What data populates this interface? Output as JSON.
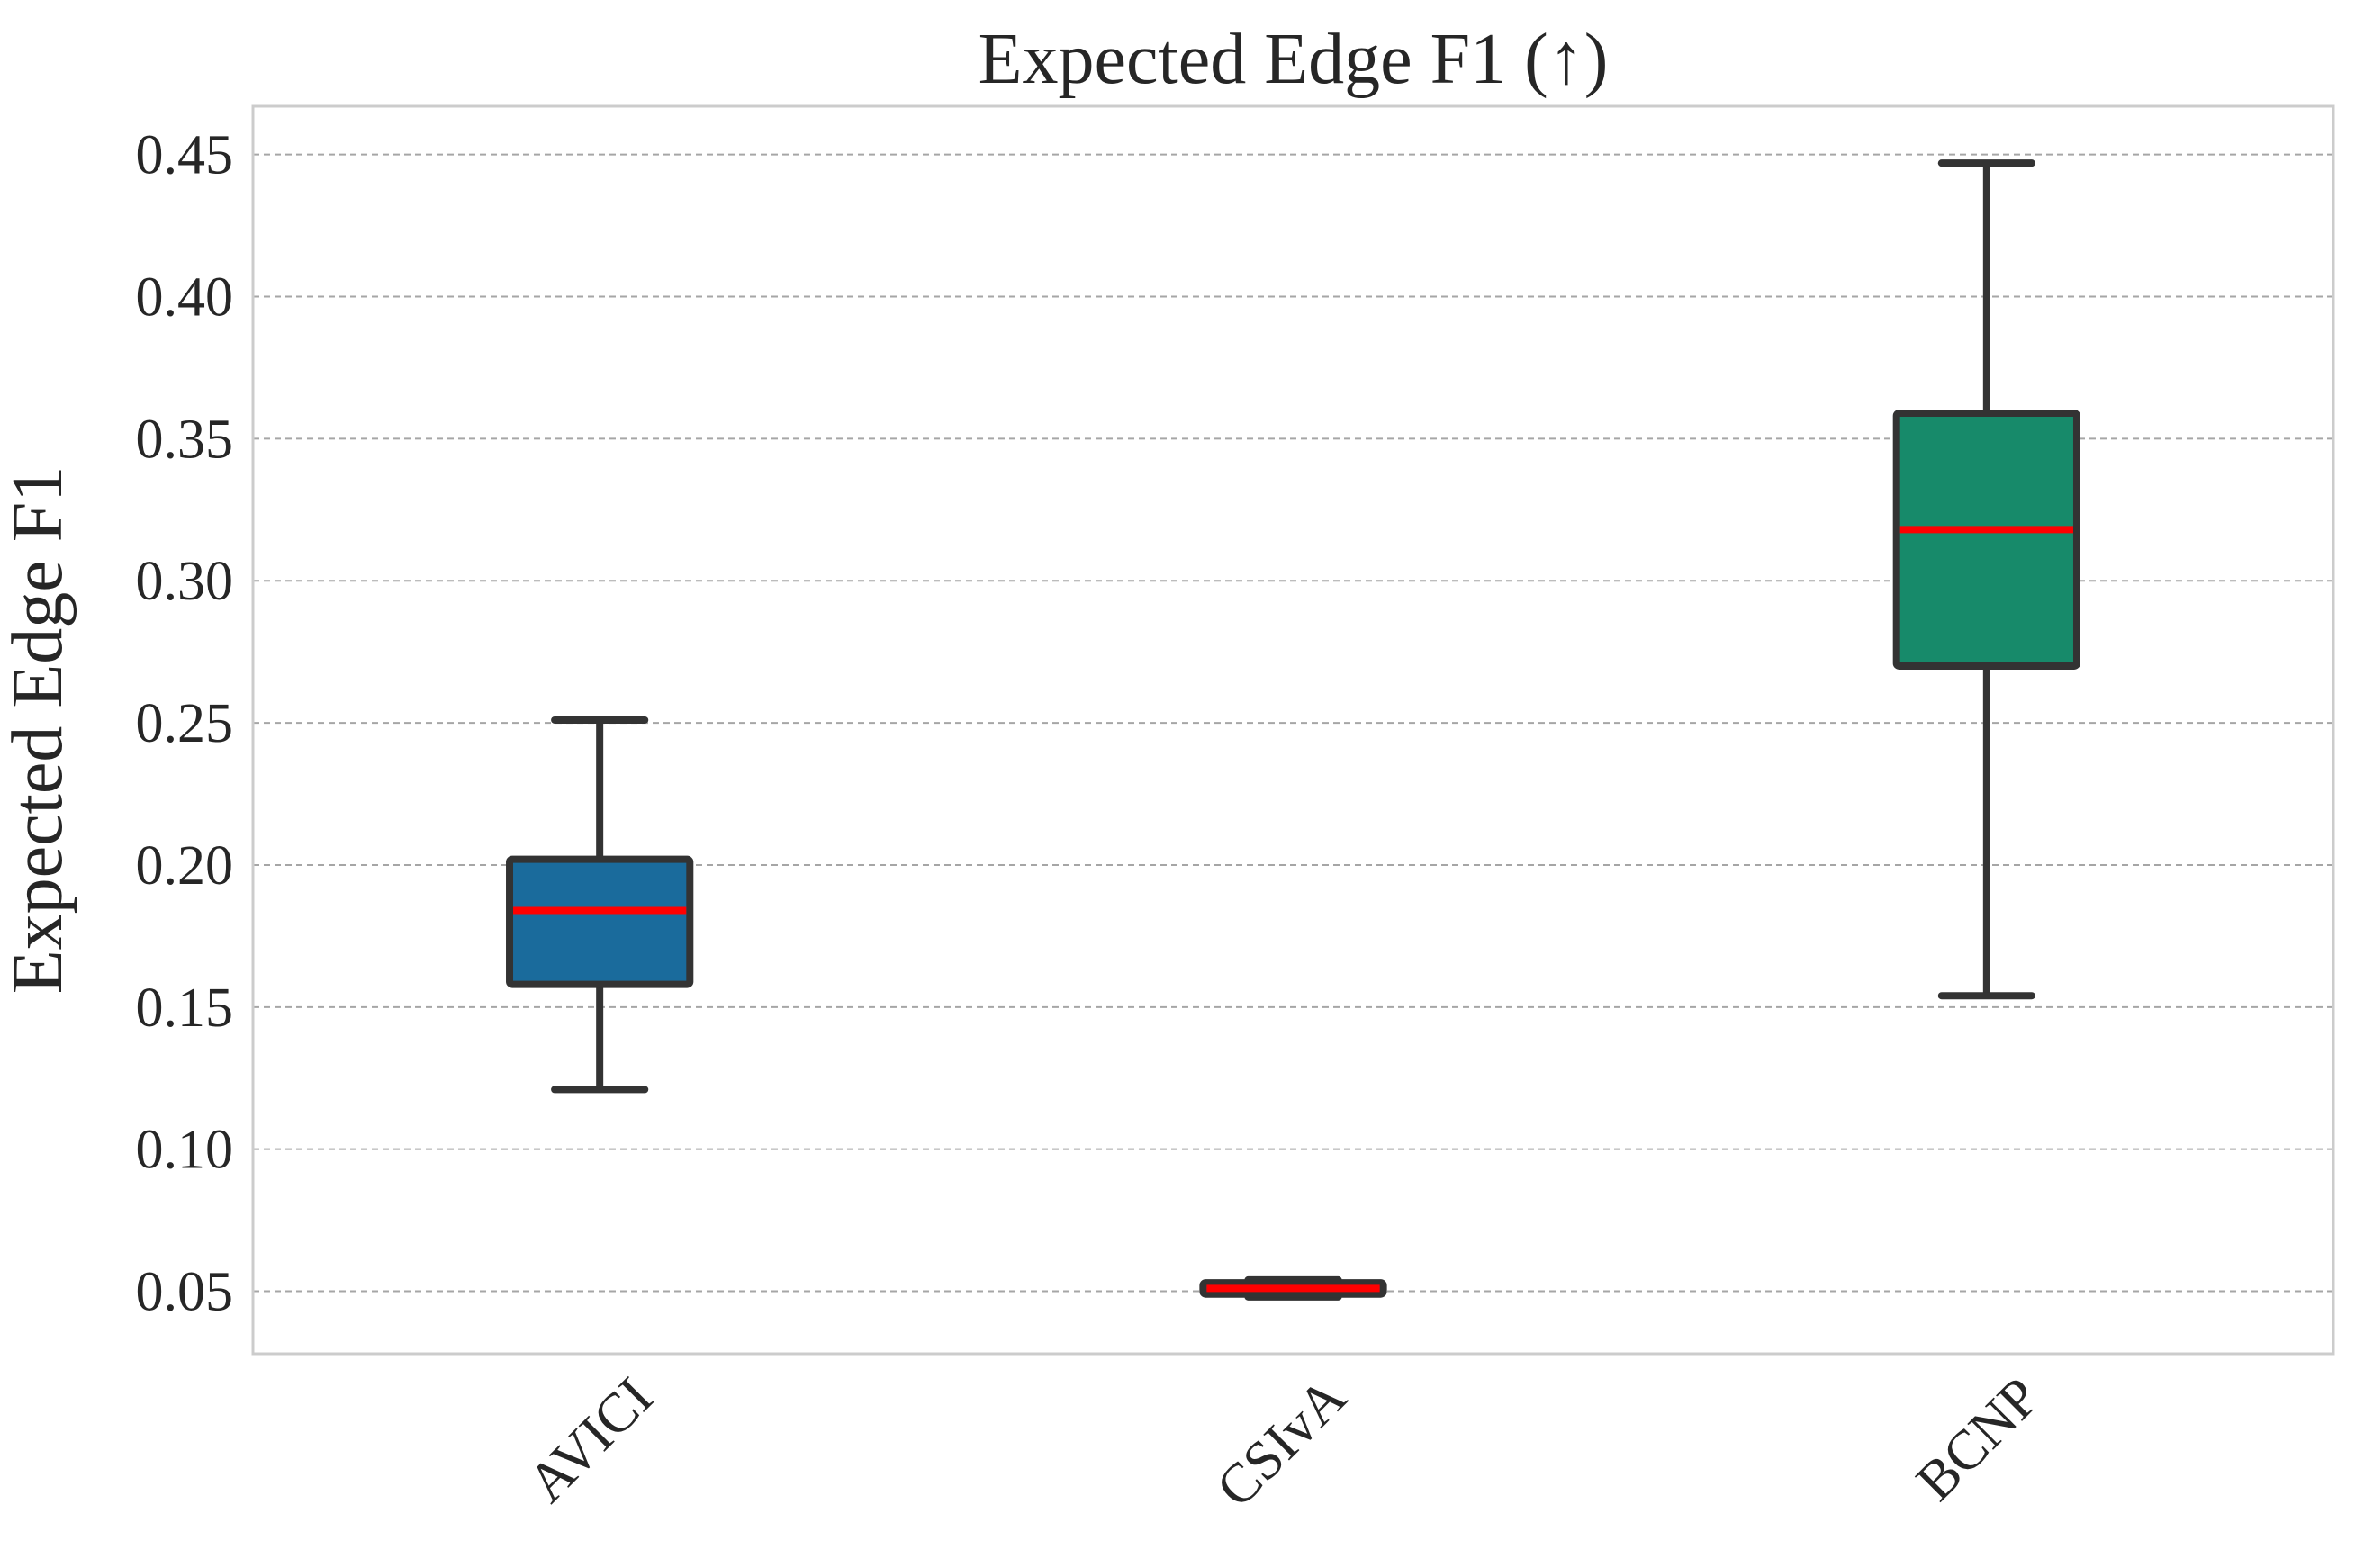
{
  "chart_data": {
    "type": "box",
    "title": "Expected Edge F1 (↑)",
    "xlabel": "",
    "ylabel": "Expected Edge F1",
    "ylim": [
      0.028,
      0.467
    ],
    "yticks": [
      0.05,
      0.1,
      0.15,
      0.2,
      0.25,
      0.3,
      0.35,
      0.4,
      0.45
    ],
    "ytick_labels": [
      "0.05",
      "0.10",
      "0.15",
      "0.20",
      "0.25",
      "0.30",
      "0.35",
      "0.40",
      "0.45"
    ],
    "categories": [
      "AVICI",
      "CSIvA",
      "BCNP"
    ],
    "grid": "y",
    "boxes": [
      {
        "category": "AVICI",
        "whisker_low": 0.121,
        "q1": 0.158,
        "median": 0.184,
        "q3": 0.202,
        "whisker_high": 0.251,
        "color": "#1a6b9c"
      },
      {
        "category": "CSIvA",
        "whisker_low": 0.048,
        "q1": 0.049,
        "median": 0.051,
        "q3": 0.053,
        "whisker_high": 0.054,
        "color": "#1a6b9c"
      },
      {
        "category": "BCNP",
        "whisker_low": 0.154,
        "q1": 0.27,
        "median": 0.318,
        "q3": 0.359,
        "whisker_high": 0.447,
        "color": "#178a6a"
      }
    ],
    "median_color": "#ff0000",
    "edge_color": "#333333",
    "grid_color": "#a6a6a6",
    "frame_color": "#cccccc"
  }
}
